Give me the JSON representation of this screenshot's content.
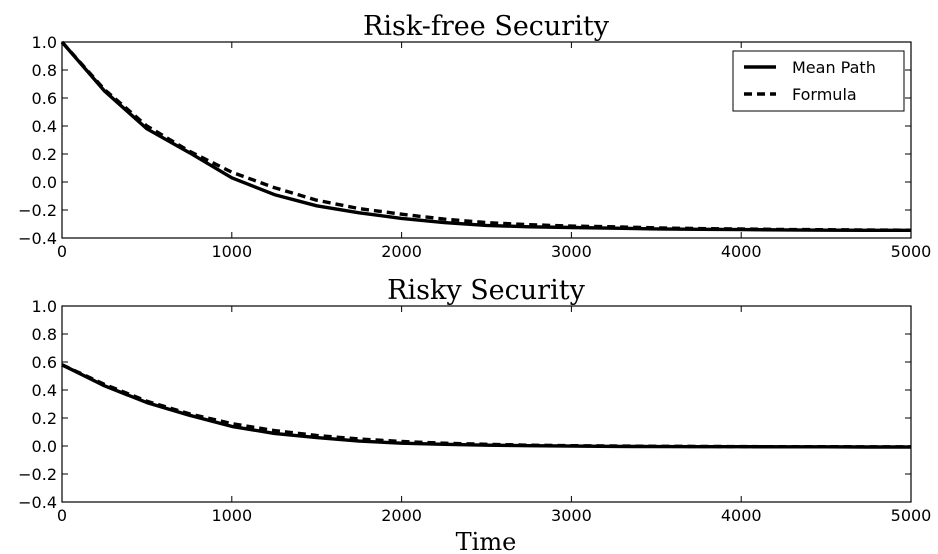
{
  "chart_data": [
    {
      "type": "line",
      "title": "Risk-free Security",
      "xlabel": "",
      "ylabel": "",
      "xlim": [
        0,
        5000
      ],
      "ylim": [
        -0.4,
        1.0
      ],
      "xticks": [
        "0",
        "1000",
        "2000",
        "3000",
        "4000",
        "5000"
      ],
      "yticks": [
        "1.0",
        "0.8",
        "0.6",
        "0.4",
        "0.2",
        "0.0",
        "−0.2",
        "−0.4"
      ],
      "grid": false,
      "legend": "top-right",
      "x": [
        0,
        250,
        500,
        750,
        1000,
        1250,
        1500,
        1750,
        2000,
        2250,
        2500,
        2750,
        3000,
        3250,
        3500,
        3750,
        4000,
        4250,
        4500,
        4750,
        5000
      ],
      "series": [
        {
          "name": "Mean Path",
          "style": "solid",
          "values": [
            1.0,
            0.65,
            0.38,
            0.21,
            0.03,
            -0.09,
            -0.17,
            -0.22,
            -0.26,
            -0.29,
            -0.31,
            -0.32,
            -0.325,
            -0.33,
            -0.335,
            -0.338,
            -0.34,
            -0.342,
            -0.344,
            -0.345,
            -0.345
          ]
        },
        {
          "name": "Formula",
          "style": "dashed",
          "values": [
            1.0,
            0.66,
            0.4,
            0.22,
            0.07,
            -0.04,
            -0.13,
            -0.19,
            -0.23,
            -0.265,
            -0.29,
            -0.305,
            -0.315,
            -0.32,
            -0.328,
            -0.333,
            -0.336,
            -0.339,
            -0.341,
            -0.343,
            -0.344
          ]
        }
      ]
    },
    {
      "type": "line",
      "title": "Risky Security",
      "xlabel": "Time",
      "ylabel": "",
      "xlim": [
        0,
        5000
      ],
      "ylim": [
        -0.4,
        1.0
      ],
      "xticks": [
        "0",
        "1000",
        "2000",
        "3000",
        "4000",
        "5000"
      ],
      "yticks": [
        "1.0",
        "0.8",
        "0.6",
        "0.4",
        "0.2",
        "0.0",
        "−0.2",
        "−0.4"
      ],
      "grid": false,
      "x": [
        0,
        250,
        500,
        750,
        1000,
        1250,
        1500,
        1750,
        2000,
        2250,
        2500,
        2750,
        3000,
        3250,
        3500,
        3750,
        4000,
        4250,
        4500,
        4750,
        5000
      ],
      "series": [
        {
          "name": "Mean Path",
          "style": "solid",
          "values": [
            0.58,
            0.43,
            0.31,
            0.22,
            0.14,
            0.09,
            0.06,
            0.035,
            0.02,
            0.012,
            0.006,
            0.002,
            -0.001,
            -0.003,
            -0.004,
            -0.005,
            -0.005,
            -0.006,
            -0.006,
            -0.007,
            -0.007
          ]
        },
        {
          "name": "Formula",
          "style": "dashed",
          "values": [
            0.58,
            0.44,
            0.32,
            0.23,
            0.16,
            0.11,
            0.075,
            0.05,
            0.032,
            0.02,
            0.012,
            0.006,
            0.002,
            0.0,
            -0.002,
            -0.003,
            -0.004,
            -0.005,
            -0.005,
            -0.006,
            -0.006
          ]
        }
      ]
    }
  ]
}
